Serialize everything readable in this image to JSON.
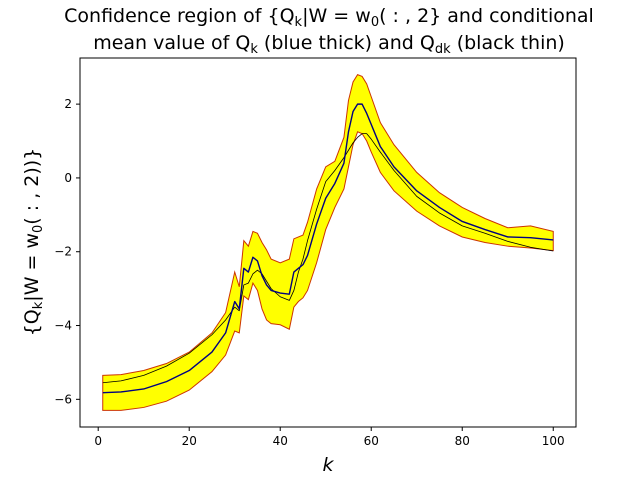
{
  "chart_data": {
    "type": "area",
    "title_line1": "Confidence region of {Q",
    "title_line1_sub": "k",
    "title_line1_mid": "|W = w",
    "title_line1_sub2": "0",
    "title_line1_end": "( : , 2} and conditional",
    "title_line2_start": "mean value of Q",
    "title_line2_sub": "k",
    "title_line2_mid": " (blue thick) and Q",
    "title_line2_sub2": "dk",
    "title_line2_end": " (black thin)",
    "xlabel": "k",
    "ylabel_start": "{Q",
    "ylabel_sub": "k",
    "ylabel_mid": "|W = w",
    "ylabel_sub2": "0",
    "ylabel_end": "( : , 2))}",
    "xlim": [
      -4,
      105
    ],
    "ylim": [
      -6.75,
      3.25
    ],
    "xticks": [
      0,
      20,
      40,
      60,
      80,
      100
    ],
    "yticks": [
      -6,
      -4,
      -2,
      0,
      2
    ],
    "grid": false,
    "colors": {
      "band_fill": "#ffff00",
      "band_edge": "#cc3300",
      "mean_line": "#000080",
      "q_dk_line": "#000000"
    },
    "series": [
      {
        "name": "upper bound",
        "x": [
          1,
          5,
          10,
          15,
          20,
          25,
          28,
          30,
          31,
          32,
          33,
          34,
          35,
          36,
          37,
          38,
          40,
          42,
          43,
          44,
          45,
          46,
          48,
          50,
          52,
          54,
          55,
          56,
          57,
          58,
          59,
          60,
          62,
          65,
          70,
          75,
          80,
          85,
          90,
          95,
          100
        ],
        "values": [
          -5.35,
          -5.33,
          -5.22,
          -5.03,
          -4.72,
          -4.2,
          -3.65,
          -2.55,
          -2.95,
          -1.7,
          -1.85,
          -1.45,
          -1.5,
          -1.75,
          -1.95,
          -2.2,
          -2.3,
          -2.2,
          -1.65,
          -1.6,
          -1.55,
          -1.2,
          -0.3,
          0.3,
          0.45,
          1.1,
          2.1,
          2.6,
          2.8,
          2.75,
          2.55,
          2.2,
          1.5,
          0.9,
          0.15,
          -0.4,
          -0.8,
          -1.1,
          -1.35,
          -1.3,
          -1.45
        ]
      },
      {
        "name": "lower bound",
        "x": [
          1,
          5,
          10,
          15,
          20,
          25,
          28,
          30,
          31,
          32,
          33,
          34,
          35,
          36,
          37,
          38,
          40,
          42,
          43,
          44,
          45,
          46,
          48,
          50,
          52,
          54,
          55,
          56,
          57,
          58,
          59,
          60,
          62,
          65,
          70,
          75,
          80,
          85,
          90,
          95,
          100
        ],
        "values": [
          -6.3,
          -6.3,
          -6.22,
          -6.05,
          -5.75,
          -5.25,
          -4.8,
          -4.15,
          -4.2,
          -3.2,
          -3.3,
          -2.85,
          -3.05,
          -3.55,
          -3.85,
          -3.95,
          -3.98,
          -4.1,
          -3.5,
          -3.35,
          -3.25,
          -3.05,
          -2.3,
          -1.4,
          -0.8,
          -0.3,
          0.3,
          0.9,
          1.25,
          1.2,
          1.0,
          0.7,
          0.15,
          -0.35,
          -0.9,
          -1.3,
          -1.6,
          -1.75,
          -1.85,
          -1.9,
          -1.97
        ]
      },
      {
        "name": "conditional mean (blue thick)",
        "x": [
          1,
          5,
          10,
          15,
          20,
          25,
          28,
          30,
          31,
          32,
          33,
          34,
          35,
          36,
          37,
          38,
          40,
          42,
          43,
          44,
          45,
          46,
          48,
          50,
          52,
          54,
          55,
          56,
          57,
          58,
          59,
          60,
          62,
          65,
          70,
          75,
          80,
          85,
          90,
          95,
          100
        ],
        "values": [
          -5.82,
          -5.8,
          -5.72,
          -5.52,
          -5.22,
          -4.72,
          -4.2,
          -3.35,
          -3.55,
          -2.45,
          -2.55,
          -2.15,
          -2.25,
          -2.65,
          -2.9,
          -3.05,
          -3.12,
          -3.15,
          -2.55,
          -2.45,
          -2.35,
          -2.1,
          -1.25,
          -0.55,
          -0.15,
          0.4,
          1.25,
          1.8,
          2.0,
          2.0,
          1.75,
          1.45,
          0.85,
          0.3,
          -0.35,
          -0.8,
          -1.18,
          -1.4,
          -1.6,
          -1.62,
          -1.68
        ]
      },
      {
        "name": "Q_dk (black thin)",
        "x": [
          1,
          5,
          10,
          15,
          20,
          25,
          28,
          30,
          31,
          32,
          33,
          34,
          35,
          36,
          37,
          38,
          40,
          42,
          43,
          44,
          45,
          46,
          48,
          50,
          52,
          54,
          55,
          56,
          57,
          58,
          59,
          60,
          62,
          65,
          70,
          75,
          80,
          85,
          90,
          95,
          100
        ],
        "values": [
          -5.55,
          -5.5,
          -5.35,
          -5.1,
          -4.75,
          -4.25,
          -3.85,
          -3.5,
          -3.6,
          -2.9,
          -2.85,
          -2.6,
          -2.5,
          -2.6,
          -2.8,
          -3.0,
          -3.22,
          -3.32,
          -3.05,
          -2.55,
          -2.2,
          -1.7,
          -0.85,
          -0.1,
          0.2,
          0.55,
          0.75,
          0.95,
          1.1,
          1.2,
          1.2,
          1.05,
          0.7,
          0.2,
          -0.5,
          -0.95,
          -1.3,
          -1.5,
          -1.72,
          -1.88,
          -1.98
        ]
      }
    ]
  }
}
